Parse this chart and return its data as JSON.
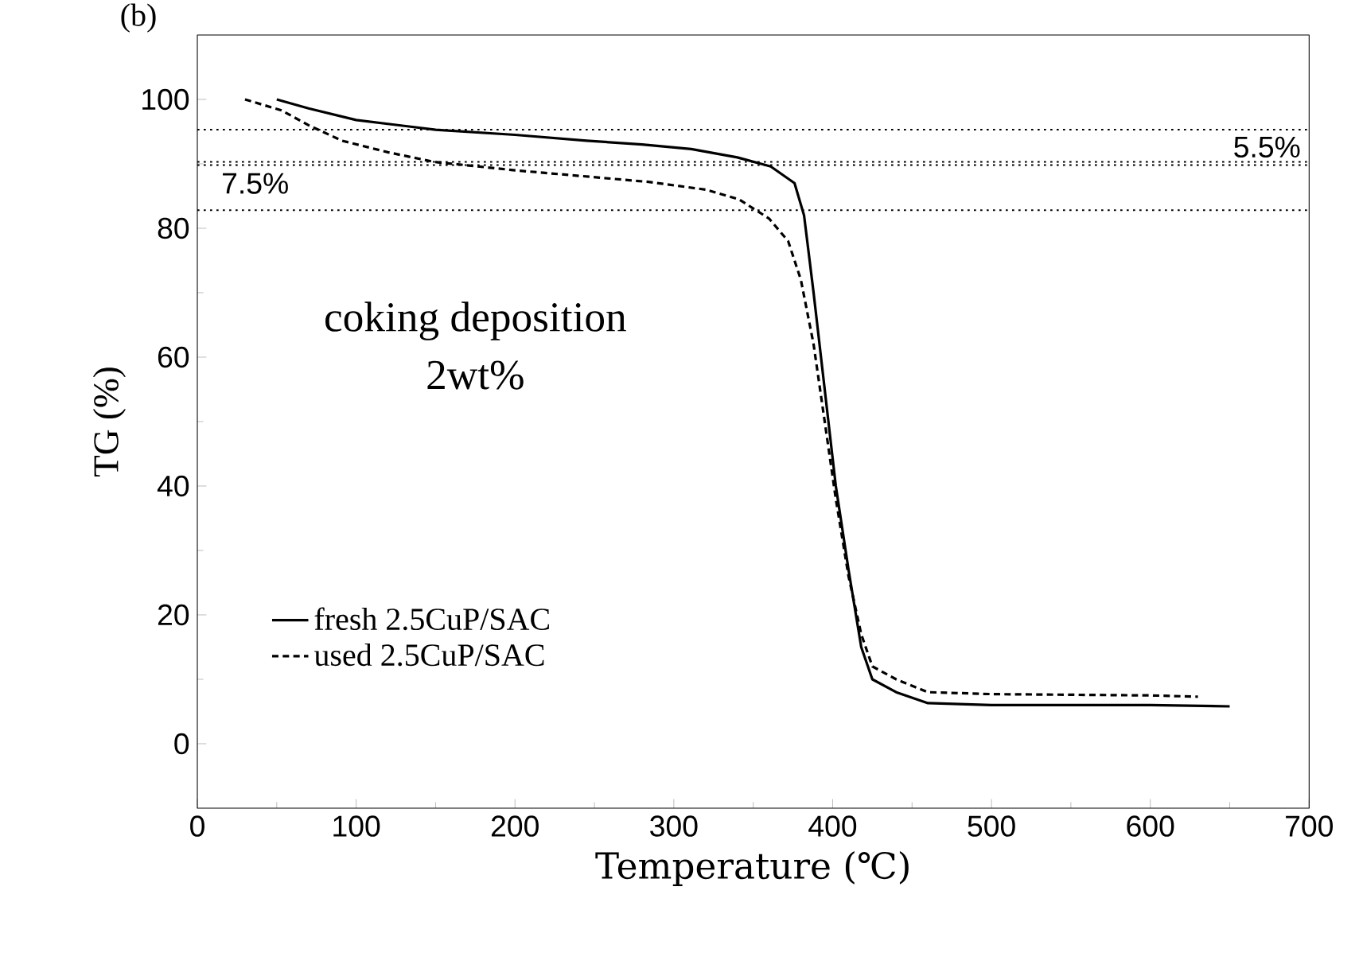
{
  "chart_data": {
    "type": "line",
    "title": "(b)",
    "xlabel": "Temperature (℃)",
    "ylabel": "TG (%)",
    "xlim": [
      0,
      700
    ],
    "xticks": [
      0,
      100,
      200,
      300,
      400,
      500,
      600,
      700
    ],
    "ylim": [
      -10,
      110
    ],
    "yticks": [
      0,
      20,
      40,
      60,
      80,
      100
    ],
    "legend": "left",
    "grid": false,
    "marker": "none",
    "annotations": [
      "coking deposition",
      "2wt%",
      "5.5%",
      "7.5%"
    ],
    "ref_lines": [
      {
        "axis": "y",
        "value": 95.3,
        "line_style": "dotted",
        "color": "#000000"
      },
      {
        "axis": "y",
        "value": 89.8,
        "line_style": "dotted",
        "color": "#000000"
      },
      {
        "axis": "y",
        "value": 90.3,
        "line_style": "dotted",
        "color": "#000000"
      },
      {
        "axis": "y",
        "value": 82.8,
        "line_style": "dotted",
        "color": "#000000"
      }
    ],
    "series": [
      {
        "name": "fresh 2.5CuP/SAC",
        "color": "#000000",
        "line_style": "solid",
        "x": [
          50,
          70,
          100,
          150,
          200,
          245,
          280,
          311,
          340,
          361,
          376,
          382,
          388,
          395,
          402,
          410,
          418,
          425,
          440,
          460,
          500,
          600,
          650
        ],
        "values": [
          100,
          98.6,
          96.8,
          95.3,
          94.5,
          93.6,
          93,
          92.3,
          91,
          89.6,
          87,
          82,
          70,
          55,
          40,
          27,
          15,
          10,
          8,
          6.3,
          6,
          6,
          5.8
        ]
      },
      {
        "name": "used 2.5CuP/SAC",
        "color": "#000000",
        "line_style": "dashed",
        "x": [
          30,
          53,
          70,
          91,
          120,
          149,
          200,
          284,
          320,
          341,
          360,
          372,
          380,
          388,
          395,
          402,
          410,
          418,
          425,
          440,
          460,
          500,
          600,
          630
        ],
        "values": [
          100,
          98.3,
          96,
          93.6,
          91.8,
          90.3,
          89,
          87.2,
          86,
          84.5,
          81.5,
          78,
          72,
          62,
          50,
          38,
          26,
          17,
          12,
          10,
          8,
          7.7,
          7.5,
          7.3
        ]
      }
    ]
  }
}
